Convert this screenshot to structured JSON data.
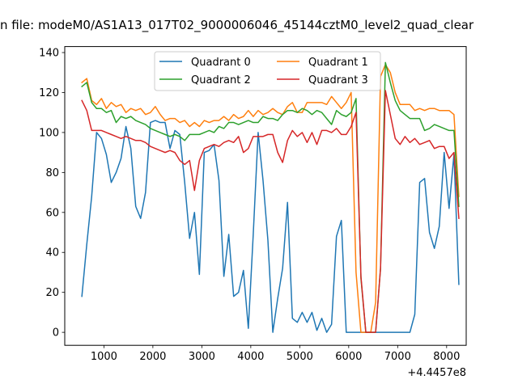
{
  "chart_data": {
    "type": "line",
    "title": "n file: modeM0/AS1A13_017T02_9000006046_45144cztM0_level2_quad_clear",
    "xlabel": "",
    "ylabel": "",
    "x_offset_label": "+4.4457e8",
    "xlim": [
      200,
      8400
    ],
    "ylim": [
      -6.5,
      143
    ],
    "xticks": [
      "1000",
      "2000",
      "3000",
      "4000",
      "5000",
      "6000",
      "7000",
      "8000"
    ],
    "yticks": [
      "0",
      "20",
      "40",
      "60",
      "80",
      "100",
      "120",
      "140"
    ],
    "grid": false,
    "legend_position": "upper center",
    "x": [
      550,
      650,
      750,
      850,
      950,
      1050,
      1150,
      1250,
      1350,
      1450,
      1550,
      1650,
      1750,
      1850,
      1950,
      2050,
      2150,
      2250,
      2350,
      2450,
      2550,
      2650,
      2750,
      2850,
      2950,
      3050,
      3150,
      3250,
      3350,
      3450,
      3550,
      3650,
      3750,
      3850,
      3950,
      4050,
      4150,
      4250,
      4350,
      4450,
      4550,
      4650,
      4750,
      4850,
      4950,
      5050,
      5150,
      5250,
      5350,
      5450,
      5550,
      5650,
      5750,
      5850,
      5950,
      6050,
      6150,
      6250,
      6350,
      6450,
      6550,
      6650,
      6750,
      6850,
      6950,
      7050,
      7150,
      7250,
      7350,
      7450,
      7550,
      7650,
      7750,
      7850,
      7950,
      8050,
      8150,
      8250
    ],
    "series": [
      {
        "name": "Quadrant 0",
        "color": "#1f77b4",
        "values": [
          18,
          44,
          68,
          100,
          97,
          89,
          75,
          80,
          87,
          103,
          92,
          63,
          57,
          70,
          105,
          106,
          105,
          105,
          92,
          101,
          99,
          75,
          47,
          60,
          29,
          90,
          91,
          94,
          76,
          28,
          49,
          18,
          20,
          31,
          2,
          49,
          100,
          76,
          46,
          0,
          17,
          32,
          65,
          7,
          5,
          10,
          5,
          10,
          1,
          7,
          0,
          4,
          48,
          56,
          0,
          0,
          0,
          0,
          0,
          0,
          0,
          0,
          0,
          0,
          0,
          0,
          0,
          0,
          9,
          75,
          77,
          50,
          42,
          53,
          90,
          62,
          89,
          24
        ]
      },
      {
        "name": "Quadrant 1",
        "color": "#ff7f0e",
        "values": [
          125,
          127,
          116,
          114,
          117,
          112,
          115,
          113,
          114,
          110,
          112,
          111,
          112,
          109,
          110,
          113,
          109,
          106,
          107,
          107,
          105,
          106,
          103,
          105,
          103,
          106,
          105,
          106,
          106,
          108,
          106,
          109,
          107,
          108,
          111,
          108,
          111,
          109,
          110,
          112,
          110,
          109,
          113,
          115,
          110,
          110,
          115,
          115,
          115,
          115,
          114,
          118,
          115,
          112,
          115,
          120,
          30,
          0,
          0,
          0,
          15,
          128,
          134,
          130,
          120,
          114,
          114,
          114,
          111,
          112,
          111,
          112,
          112,
          111,
          111,
          111,
          109,
          68
        ]
      },
      {
        "name": "Quadrant 2",
        "color": "#2ca02c",
        "values": [
          123,
          125,
          115,
          112,
          112,
          110,
          111,
          105,
          108,
          107,
          108,
          106,
          105,
          104,
          102,
          101,
          100,
          99,
          98,
          99,
          98,
          96,
          99,
          99,
          99,
          100,
          101,
          100,
          103,
          102,
          105,
          105,
          104,
          105,
          106,
          105,
          105,
          108,
          107,
          107,
          106,
          109,
          111,
          111,
          110,
          112,
          111,
          109,
          111,
          110,
          107,
          104,
          111,
          109,
          108,
          110,
          117,
          27,
          0,
          0,
          0,
          32,
          135,
          125,
          116,
          111,
          109,
          107,
          107,
          107,
          101,
          102,
          104,
          103,
          102,
          101,
          101,
          63
        ]
      },
      {
        "name": "Quadrant 3",
        "color": "#d62728",
        "values": [
          116,
          111,
          101,
          101,
          101,
          100,
          99,
          98,
          97,
          98,
          97,
          96,
          96,
          95,
          93,
          92,
          91,
          90,
          91,
          90,
          86,
          84,
          86,
          71,
          86,
          92,
          93,
          94,
          93,
          95,
          96,
          95,
          98,
          90,
          92,
          98,
          98,
          98,
          99,
          99,
          90,
          85,
          96,
          101,
          98,
          100,
          95,
          100,
          94,
          101,
          101,
          100,
          102,
          99,
          99,
          103,
          110,
          28,
          0,
          0,
          0,
          32,
          121,
          109,
          97,
          94,
          98,
          95,
          97,
          94,
          95,
          96,
          92,
          93,
          93,
          87,
          90,
          57
        ]
      }
    ]
  }
}
